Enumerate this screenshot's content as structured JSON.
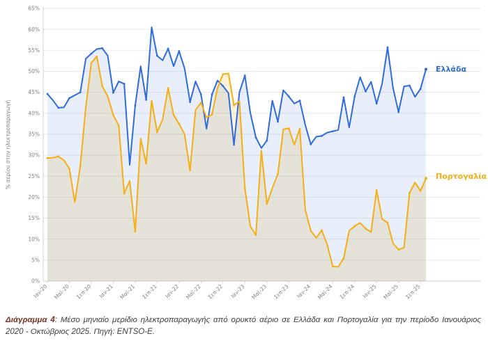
{
  "chart_data": {
    "type": "line",
    "title": "",
    "ylabel": "% αερίου στην ηλεκτροπαραγωγή",
    "xlabel": "",
    "ylim": [
      0,
      65
    ],
    "y_tick_step": 5,
    "y_tick_labels": [
      "0%",
      "5%",
      "10%",
      "15%",
      "20%",
      "25%",
      "30%",
      "35%",
      "40%",
      "45%",
      "50%",
      "55%",
      "60%",
      "65%"
    ],
    "x_tick_labels": [
      "Ιαν-20",
      "Μαϊ-20",
      "Σεπ-20",
      "Ιαν-21",
      "Μαϊ-21",
      "Σεπ-21",
      "Ιαν-22",
      "Μαϊ-22",
      "Σεπ-22",
      "Ιαν-23",
      "Μαϊ-23",
      "Σεπ-23",
      "Ιαν-24",
      "Μαϊ-24",
      "Σεπ-24",
      "Ιαν-25",
      "Μαϊ-25",
      "Σεπ-25"
    ],
    "x_tick_every": 4,
    "grid": true,
    "legend_position": "right-of-line-ends",
    "series": [
      {
        "name": "Ελλάδα",
        "color": "#2f6bdb",
        "fill": "rgba(78,122,216,0.13)",
        "values": [
          44.6,
          43.1,
          41.3,
          41.4,
          43.6,
          44.3,
          45.0,
          53.0,
          54.2,
          55.3,
          55.5,
          53.7,
          44.9,
          47.6,
          47.0,
          27.7,
          41.8,
          51.2,
          43.2,
          60.5,
          53.7,
          52.6,
          55.4,
          51.2,
          54.8,
          50.7,
          42.7,
          47.6,
          44.5,
          36.3,
          44.5,
          47.8,
          46.5,
          44.8,
          32.5,
          45.0,
          49.0,
          40.0,
          34.2,
          31.7,
          33.5,
          43.0,
          38.0,
          45.5,
          44.0,
          42.3,
          43.0,
          37.2,
          32.6,
          34.4,
          34.6,
          35.4,
          35.7,
          36.0,
          43.8,
          36.6,
          44.0,
          48.6,
          45.2,
          47.5,
          42.3,
          47.0,
          55.7,
          46.0,
          40.3,
          46.4,
          46.6,
          43.9,
          45.8,
          50.5
        ]
      },
      {
        "name": "Πορτογαλία",
        "color": "#f5ae13",
        "fill": "rgba(235,175,25,0.16)",
        "values": [
          29.3,
          29.4,
          29.7,
          28.8,
          26.8,
          18.8,
          27.5,
          41.5,
          52.0,
          53.6,
          46.5,
          44.0,
          39.6,
          37.1,
          20.9,
          23.9,
          11.8,
          34.0,
          28.0,
          43.0,
          35.5,
          38.5,
          46.0,
          39.6,
          37.5,
          35.0,
          26.4,
          40.8,
          42.5,
          39.0,
          39.7,
          46.0,
          49.3,
          49.5,
          41.9,
          42.9,
          22.0,
          13.0,
          11.0,
          31.1,
          18.4,
          22.2,
          25.5,
          36.2,
          36.4,
          32.5,
          36.3,
          17.0,
          12.0,
          10.3,
          12.1,
          8.7,
          3.5,
          3.4,
          5.4,
          12.0,
          13.1,
          13.9,
          12.5,
          11.7,
          21.7,
          14.8,
          13.9,
          9.0,
          7.5,
          8.0,
          21.0,
          23.5,
          21.5,
          24.5
        ]
      }
    ],
    "x_period_start": "Ιανουάριος 2020",
    "x_period_end": "Οκτώβριος 2025"
  },
  "legend": {
    "greece": "Ελλάδα",
    "portugal": "Πορτογαλία"
  },
  "caption": {
    "label": "Διάγραμμα 4",
    "body": ": Μέσο μηνιαίο μερίδιο ηλεκτροπαραγωγής από ορυκτό αέριο σε Ελλάδα και Πορτογαλία για την περίοδο Ιανουάριος 2020 - Οκτώβριος 2025. Πηγή: ENTSO-E."
  },
  "colors": {
    "greece_line": "#2f6bdb",
    "portugal_line": "#f5ae13",
    "gridline": "#e8e8e8",
    "axis": "#d0d0d0",
    "tick_text": "#808080",
    "caption_label": "#7b3220"
  }
}
